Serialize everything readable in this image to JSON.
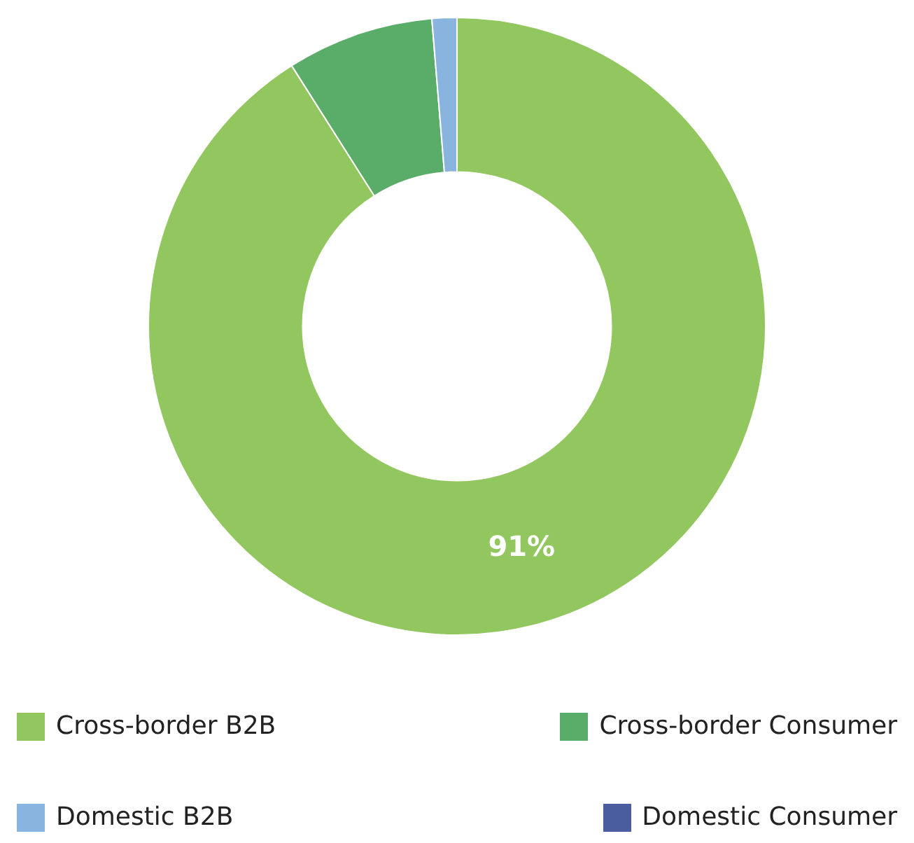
{
  "chart_data": {
    "type": "donut",
    "categories": [
      "Cross-border B2B",
      "Cross-border Consumer",
      "Domestic B2B",
      "Domestic Consumer"
    ],
    "values": [
      91,
      7.7,
      1.3,
      0
    ],
    "colors": [
      "#92c65e",
      "#5aad69",
      "#8ab4e0",
      "#4a5d9e"
    ],
    "value_labels": [
      "91%",
      null,
      null,
      null
    ],
    "legend": "bottom"
  }
}
